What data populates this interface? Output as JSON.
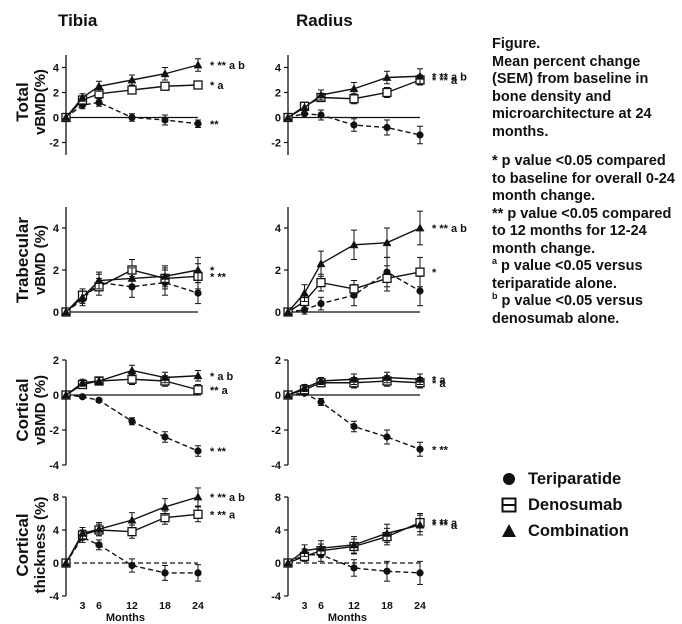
{
  "columns": [
    "Tibia",
    "Radius"
  ],
  "row_labels": [
    [
      "Total",
      "vBMD(%)"
    ],
    [
      "Trabecular",
      "vBMD (%)"
    ],
    [
      "Cortical",
      "vBMD (%)"
    ],
    [
      "Cortical",
      "thickness (%)"
    ]
  ],
  "caption": {
    "title": "Figure.",
    "body": "Mean percent change (SEM) from baseline in bone density and microarchitecture at 24 months.",
    "note1": "* p value <0.05 compared to baseline for overall 0-24 month change.",
    "note2": "** p value <0.05 compared to 12 months for 12-24 month change.",
    "note3_sup": "a",
    "note3": " p value <0.05 versus teriparatide alone.",
    "note4_sup": "b",
    "note4": " p value <0.05 versus denosumab alone."
  },
  "legend": [
    {
      "name": "Teriparatide",
      "marker": "circle"
    },
    {
      "name": "Denosumab",
      "marker": "square"
    },
    {
      "name": "Combination",
      "marker": "triangle"
    }
  ],
  "colors": {
    "ink": "#111111",
    "square_fill": "#ffffff"
  },
  "chart_data": [
    {
      "type": "line",
      "row": 0,
      "col": 0,
      "ylim": [
        -3,
        5
      ],
      "yticks": [
        -2,
        0,
        2,
        4
      ],
      "x": [
        0,
        3,
        6,
        12,
        18,
        24
      ],
      "series": [
        {
          "name": "Teriparatide",
          "values": [
            0,
            1.0,
            1.2,
            0.0,
            -0.2,
            -0.5
          ],
          "err": [
            0,
            0.3,
            0.3,
            0.3,
            0.4,
            0.3
          ],
          "annot": "**"
        },
        {
          "name": "Denosumab",
          "values": [
            0,
            1.4,
            1.9,
            2.2,
            2.5,
            2.6
          ],
          "err": [
            0,
            0.3,
            0.3,
            0.3,
            0.3,
            0.3
          ],
          "annot": "* a"
        },
        {
          "name": "Combination",
          "values": [
            0,
            1.6,
            2.5,
            3.0,
            3.5,
            4.2
          ],
          "err": [
            0,
            0.3,
            0.4,
            0.4,
            0.5,
            0.5
          ],
          "annot": "* ** a b"
        }
      ]
    },
    {
      "type": "line",
      "row": 0,
      "col": 1,
      "ylim": [
        -3,
        5
      ],
      "yticks": [
        -2,
        0,
        2,
        4
      ],
      "x": [
        0,
        3,
        6,
        12,
        18,
        24
      ],
      "series": [
        {
          "name": "Teriparatide",
          "values": [
            0,
            0.3,
            0.2,
            -0.6,
            -0.8,
            -1.4
          ],
          "err": [
            0,
            0.3,
            0.4,
            0.5,
            0.6,
            0.7
          ],
          "annot": ""
        },
        {
          "name": "Denosumab",
          "values": [
            0,
            0.9,
            1.6,
            1.5,
            2.0,
            3.0
          ],
          "err": [
            0,
            0.3,
            0.3,
            0.4,
            0.4,
            0.4
          ],
          "annot": "* ** a"
        },
        {
          "name": "Combination",
          "values": [
            0,
            0.8,
            1.8,
            2.3,
            3.2,
            3.3
          ],
          "err": [
            0,
            0.4,
            0.4,
            0.5,
            0.5,
            0.6
          ],
          "annot": "* ** a b"
        }
      ]
    },
    {
      "type": "line",
      "row": 1,
      "col": 0,
      "ylim": [
        0,
        5
      ],
      "yticks": [
        0,
        2,
        4
      ],
      "x": [
        0,
        3,
        6,
        12,
        18,
        24
      ],
      "series": [
        {
          "name": "Teriparatide",
          "values": [
            0,
            0.6,
            1.4,
            1.2,
            1.4,
            0.9
          ],
          "err": [
            0,
            0.3,
            0.4,
            0.5,
            0.6,
            0.5
          ],
          "annot": ""
        },
        {
          "name": "Denosumab",
          "values": [
            0,
            0.8,
            1.2,
            2.0,
            1.6,
            1.7
          ],
          "err": [
            0,
            0.3,
            0.4,
            0.5,
            0.5,
            0.6
          ],
          "annot": "* **"
        },
        {
          "name": "Combination",
          "values": [
            0,
            0.7,
            1.5,
            1.6,
            1.7,
            2.0
          ],
          "err": [
            0,
            0.3,
            0.4,
            0.5,
            0.5,
            0.6
          ],
          "annot": "*"
        }
      ]
    },
    {
      "type": "line",
      "row": 1,
      "col": 1,
      "ylim": [
        0,
        5
      ],
      "yticks": [
        0,
        2,
        4
      ],
      "x": [
        0,
        3,
        6,
        12,
        18,
        24
      ],
      "series": [
        {
          "name": "Teriparatide",
          "values": [
            0,
            0.1,
            0.4,
            0.8,
            1.9,
            1.0
          ],
          "err": [
            0,
            0.2,
            0.3,
            0.5,
            0.7,
            0.7
          ],
          "annot": ""
        },
        {
          "name": "Denosumab",
          "values": [
            0,
            0.5,
            1.4,
            1.1,
            1.6,
            1.9
          ],
          "err": [
            0,
            0.3,
            0.4,
            0.4,
            0.6,
            0.7
          ],
          "annot": "*"
        },
        {
          "name": "Combination",
          "values": [
            0,
            0.9,
            2.3,
            3.2,
            3.3,
            4.0
          ],
          "err": [
            0,
            0.4,
            0.6,
            0.7,
            0.7,
            0.8
          ],
          "annot": "* ** a b"
        }
      ]
    },
    {
      "type": "line",
      "row": 2,
      "col": 0,
      "ylim": [
        -4,
        2
      ],
      "yticks": [
        -4,
        -2,
        0,
        2
      ],
      "x": [
        0,
        3,
        6,
        12,
        18,
        24
      ],
      "series": [
        {
          "name": "Teriparatide",
          "values": [
            0,
            -0.1,
            -0.3,
            -1.5,
            -2.4,
            -3.2
          ],
          "err": [
            0,
            0.1,
            0.1,
            0.2,
            0.3,
            0.3
          ],
          "annot": "* **"
        },
        {
          "name": "Denosumab",
          "values": [
            0,
            0.6,
            0.8,
            0.9,
            0.8,
            0.3
          ],
          "err": [
            0,
            0.2,
            0.2,
            0.3,
            0.3,
            0.3
          ],
          "annot": "** a"
        },
        {
          "name": "Combination",
          "values": [
            0,
            0.7,
            0.8,
            1.4,
            1.0,
            1.1
          ],
          "err": [
            0,
            0.2,
            0.2,
            0.3,
            0.3,
            0.3
          ],
          "annot": "* a b"
        }
      ]
    },
    {
      "type": "line",
      "row": 2,
      "col": 1,
      "ylim": [
        -4,
        2
      ],
      "yticks": [
        -4,
        -2,
        0,
        2
      ],
      "x": [
        0,
        3,
        6,
        12,
        18,
        24
      ],
      "series": [
        {
          "name": "Teriparatide",
          "values": [
            0,
            0.1,
            -0.4,
            -1.8,
            -2.4,
            -3.1
          ],
          "err": [
            0,
            0.1,
            0.2,
            0.3,
            0.4,
            0.4
          ],
          "annot": "* **"
        },
        {
          "name": "Denosumab",
          "values": [
            0,
            0.3,
            0.7,
            0.7,
            0.8,
            0.7
          ],
          "err": [
            0,
            0.2,
            0.2,
            0.3,
            0.3,
            0.3
          ],
          "annot": "* a"
        },
        {
          "name": "Combination",
          "values": [
            0,
            0.4,
            0.8,
            0.9,
            1.0,
            0.9
          ],
          "err": [
            0,
            0.2,
            0.2,
            0.3,
            0.3,
            0.3
          ],
          "annot": "* a"
        }
      ]
    },
    {
      "type": "line",
      "row": 3,
      "col": 0,
      "ylim": [
        -4,
        8
      ],
      "yticks": [
        -4,
        0,
        4,
        8
      ],
      "x": [
        0,
        3,
        6,
        12,
        18,
        24
      ],
      "series": [
        {
          "name": "Teriparatide",
          "values": [
            0,
            3.1,
            2.2,
            -0.3,
            -1.2,
            -1.2
          ],
          "err": [
            0,
            0.6,
            0.6,
            0.8,
            0.9,
            1.0
          ],
          "annot": ""
        },
        {
          "name": "Denosumab",
          "values": [
            0,
            3.4,
            4.0,
            3.8,
            5.5,
            5.9
          ],
          "err": [
            0,
            0.6,
            0.7,
            0.8,
            0.8,
            0.9
          ],
          "annot": "* ** a"
        },
        {
          "name": "Combination",
          "values": [
            0,
            3.6,
            4.1,
            5.2,
            6.8,
            8.0
          ],
          "err": [
            0,
            0.7,
            0.8,
            0.9,
            1.0,
            1.1
          ],
          "annot": "* ** a b"
        }
      ]
    },
    {
      "type": "line",
      "row": 3,
      "col": 1,
      "ylim": [
        -4,
        8
      ],
      "yticks": [
        -4,
        0,
        4,
        8
      ],
      "x": [
        0,
        3,
        6,
        12,
        18,
        24
      ],
      "series": [
        {
          "name": "Teriparatide",
          "values": [
            0,
            1.0,
            1.0,
            -0.6,
            -1.0,
            -1.2
          ],
          "err": [
            0,
            0.7,
            0.8,
            1.0,
            1.2,
            1.4
          ],
          "annot": ""
        },
        {
          "name": "Denosumab",
          "values": [
            0,
            0.8,
            1.5,
            2.0,
            3.2,
            4.9
          ],
          "err": [
            0,
            0.6,
            0.8,
            0.9,
            1.0,
            1.1
          ],
          "annot": "* ** a"
        },
        {
          "name": "Combination",
          "values": [
            0,
            1.5,
            1.8,
            2.2,
            3.6,
            4.6
          ],
          "err": [
            0,
            0.7,
            0.9,
            1.0,
            1.1,
            1.2
          ],
          "annot": "* ** a"
        }
      ]
    }
  ],
  "x_axis": {
    "ticks": [
      3,
      6,
      12,
      18,
      24
    ],
    "label": "Months"
  }
}
